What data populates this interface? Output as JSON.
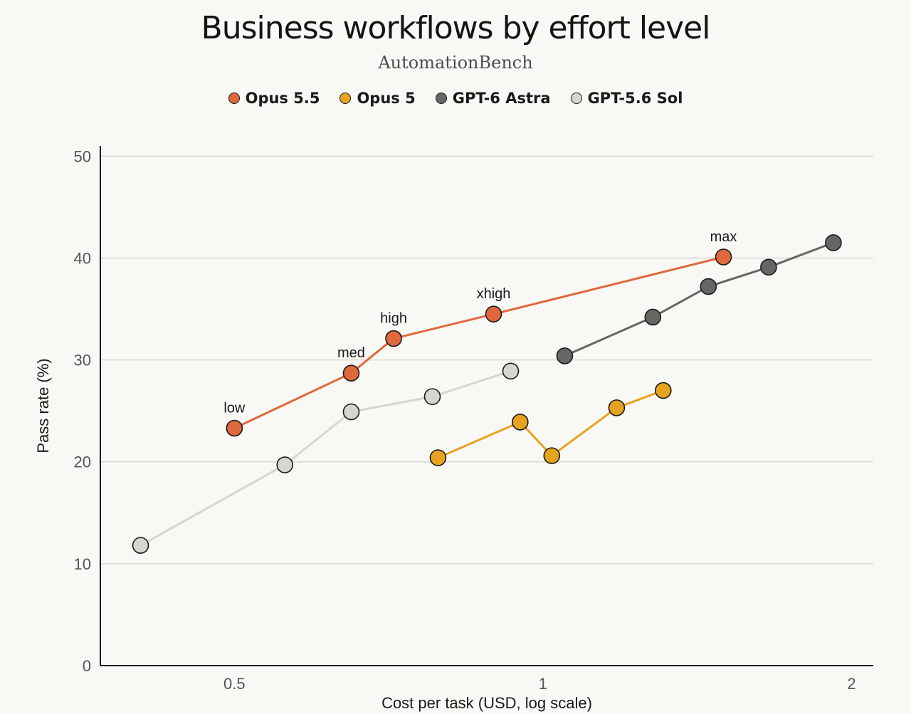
{
  "chart_data": {
    "type": "line",
    "title": "Business workflows by effort level",
    "subtitle": "AutomationBench",
    "xlabel": "Cost per task (USD, log scale)",
    "ylabel": "Pass rate (%)",
    "x_scale": "log",
    "xlim": [
      0.37,
      2.1
    ],
    "ylim": [
      0,
      51
    ],
    "x_ticks": [
      0.5,
      1,
      2
    ],
    "x_tick_labels": [
      "0.5",
      "1",
      "2"
    ],
    "y_ticks": [
      0,
      10,
      20,
      30,
      40,
      50
    ],
    "y_tick_labels": [
      "0",
      "10",
      "20",
      "30",
      "40",
      "50"
    ],
    "grid": "horizontal",
    "legend_position": "top-center",
    "series": [
      {
        "name": "Opus 5.5",
        "color": "#e0683d",
        "x": [
          0.5,
          0.65,
          0.715,
          0.895,
          1.5
        ],
        "y": [
          23.3,
          28.7,
          32.1,
          34.5,
          40.1
        ],
        "labels": [
          "low",
          "med",
          "high",
          "xhigh",
          "max"
        ]
      },
      {
        "name": "Opus 5",
        "color": "#e6a31f",
        "x": [
          0.79,
          0.95,
          1.02,
          1.18,
          1.31
        ],
        "y": [
          20.4,
          23.9,
          20.6,
          25.3,
          27.0
        ]
      },
      {
        "name": "GPT-6 Astra",
        "color": "#666663",
        "x": [
          1.05,
          1.28,
          1.45,
          1.66,
          1.92
        ],
        "y": [
          30.4,
          34.2,
          37.2,
          39.1,
          41.5
        ]
      },
      {
        "name": "GPT-5.6 Sol",
        "color": "#d6d5cf",
        "x": [
          0.405,
          0.56,
          0.65,
          0.78,
          0.93
        ],
        "y": [
          11.8,
          19.7,
          24.9,
          26.4,
          28.9
        ]
      }
    ]
  }
}
